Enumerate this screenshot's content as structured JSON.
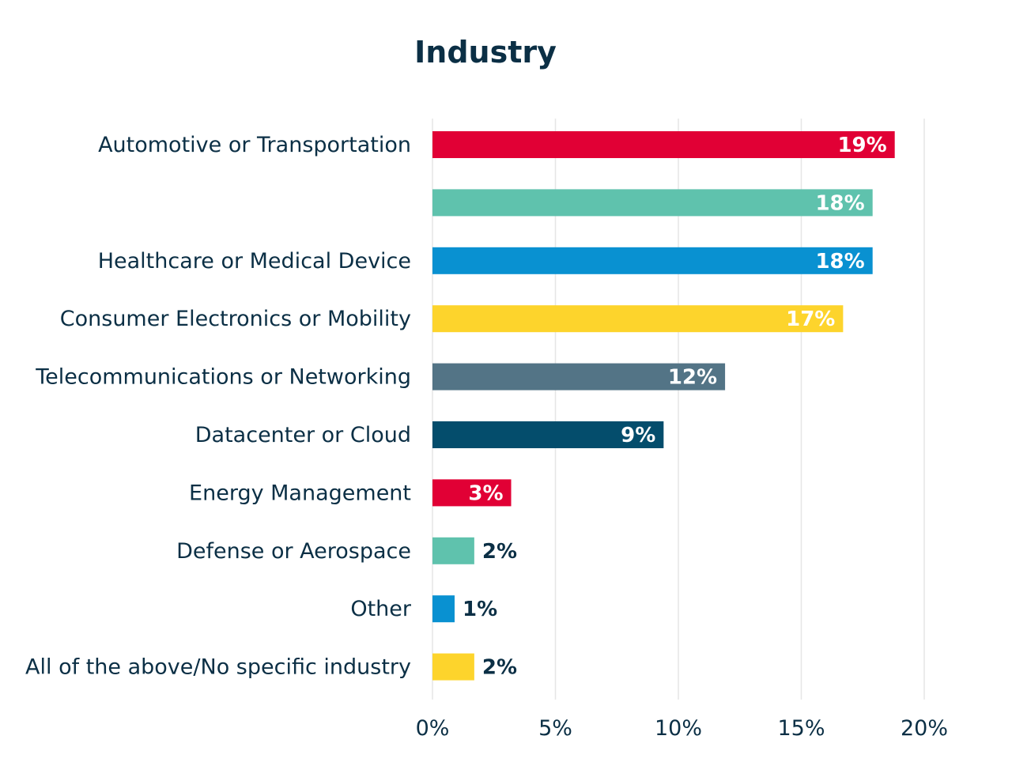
{
  "chart_data": {
    "type": "bar",
    "orientation": "horizontal",
    "title": "Industry",
    "categories": [
      "Automotive or Transportation",
      "",
      "Healthcare or Medical Device",
      "Consumer Electronics or Mobility",
      "Telecommunications or Networking",
      "Datacenter or Cloud",
      "Energy Management",
      "Defense or Aerospace",
      "Other",
      "All of the above/No specific industry"
    ],
    "values": [
      18.8,
      17.9,
      17.9,
      16.7,
      11.9,
      9.4,
      3.2,
      1.7,
      0.9,
      1.7
    ],
    "value_labels": [
      "19%",
      "18%",
      "18%",
      "17%",
      "12%",
      "9%",
      "3%",
      "2%",
      "1%",
      "2%"
    ],
    "colors": [
      "#e10035",
      "#5fc2ad",
      "#0991d1",
      "#fdd42c",
      "#537486",
      "#044d6c",
      "#e10035",
      "#5fc2ad",
      "#0991d1",
      "#fdd42c"
    ],
    "label_colors": {
      "inside": "#ffffff",
      "outside": "#0b2f45"
    },
    "xlim": [
      0,
      20
    ],
    "xticks": [
      0,
      5,
      10,
      15,
      20
    ],
    "xtick_labels": [
      "0%",
      "5%",
      "10%",
      "15%",
      "20%"
    ],
    "grid": "vertical",
    "legend": "none"
  }
}
